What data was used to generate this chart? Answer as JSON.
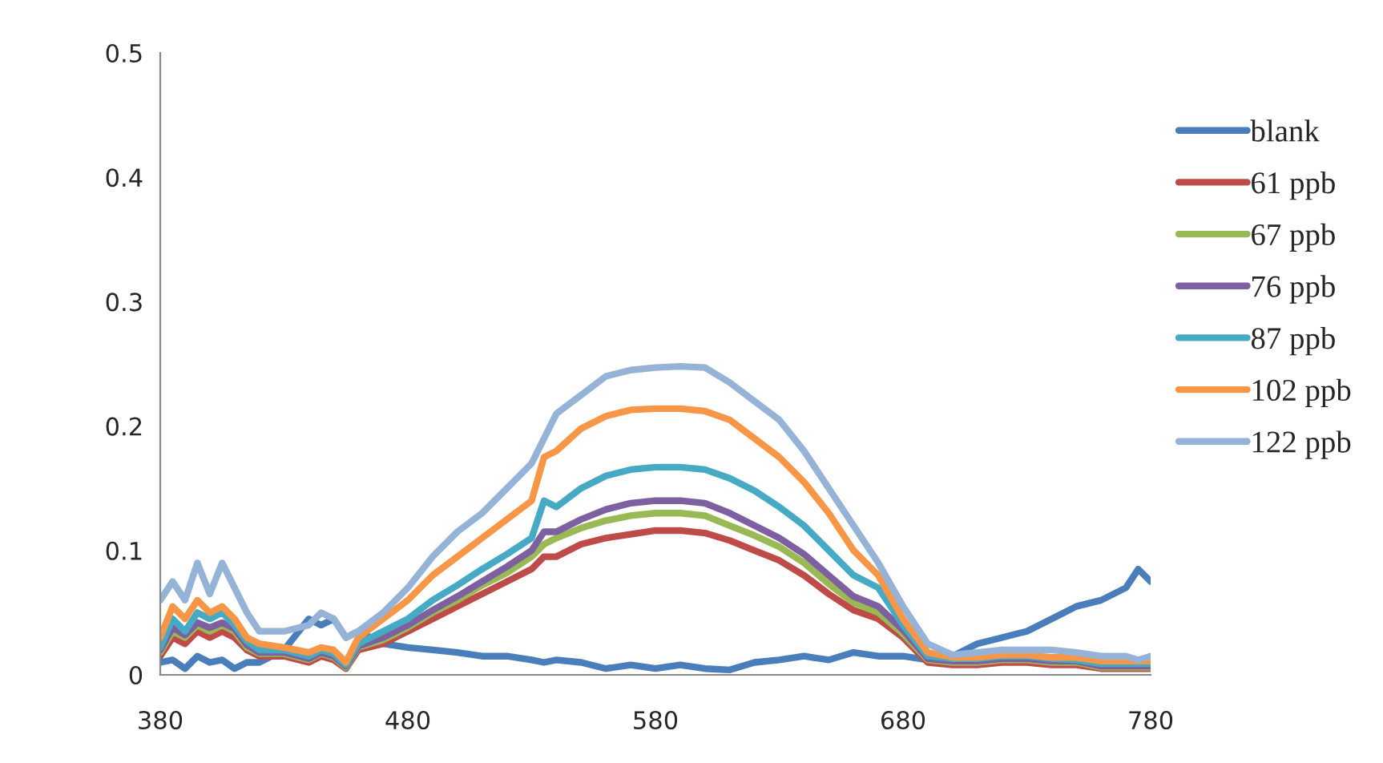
{
  "chart_data": {
    "type": "line",
    "xlim": [
      380,
      780
    ],
    "xticks": [
      380,
      480,
      580,
      680,
      780
    ],
    "ylim": [
      0,
      0.5
    ],
    "yticks": [
      0,
      0.1,
      0.2,
      0.3,
      0.4,
      0.5
    ],
    "grid": false,
    "legend": "right",
    "marker": "none",
    "line_style": "solid",
    "x": [
      380,
      385,
      390,
      395,
      400,
      405,
      410,
      415,
      420,
      430,
      440,
      445,
      450,
      455,
      460,
      470,
      480,
      490,
      500,
      510,
      520,
      530,
      535,
      540,
      550,
      560,
      570,
      580,
      590,
      600,
      610,
      620,
      630,
      640,
      650,
      660,
      670,
      680,
      690,
      700,
      710,
      720,
      730,
      740,
      750,
      760,
      770,
      775,
      780
    ],
    "series": [
      {
        "name": "blank",
        "color": "#4a7ebb",
        "values": [
          0.01,
          0.012,
          0.005,
          0.015,
          0.01,
          0.012,
          0.005,
          0.01,
          0.01,
          0.02,
          0.045,
          0.04,
          0.045,
          0.03,
          0.035,
          0.025,
          0.022,
          0.02,
          0.018,
          0.015,
          0.015,
          0.012,
          0.01,
          0.012,
          0.01,
          0.005,
          0.008,
          0.005,
          0.008,
          0.005,
          0.004,
          0.01,
          0.012,
          0.015,
          0.012,
          0.018,
          0.015,
          0.015,
          0.012,
          0.015,
          0.025,
          0.03,
          0.035,
          0.045,
          0.055,
          0.06,
          0.07,
          0.085,
          0.075
        ]
      },
      {
        "name": "61 ppb",
        "color": "#be4b48",
        "values": [
          0.015,
          0.03,
          0.025,
          0.035,
          0.03,
          0.035,
          0.03,
          0.02,
          0.015,
          0.015,
          0.01,
          0.015,
          0.012,
          0.005,
          0.02,
          0.025,
          0.035,
          0.045,
          0.055,
          0.065,
          0.075,
          0.085,
          0.095,
          0.095,
          0.105,
          0.11,
          0.113,
          0.116,
          0.116,
          0.114,
          0.108,
          0.1,
          0.092,
          0.08,
          0.065,
          0.052,
          0.045,
          0.03,
          0.01,
          0.008,
          0.008,
          0.01,
          0.01,
          0.008,
          0.008,
          0.005,
          0.005,
          0.005,
          0.005
        ]
      },
      {
        "name": "67 ppb",
        "color": "#98b954",
        "values": [
          0.018,
          0.035,
          0.03,
          0.04,
          0.035,
          0.04,
          0.035,
          0.022,
          0.017,
          0.017,
          0.012,
          0.017,
          0.014,
          0.006,
          0.022,
          0.028,
          0.038,
          0.05,
          0.06,
          0.072,
          0.082,
          0.095,
          0.105,
          0.11,
          0.118,
          0.124,
          0.128,
          0.13,
          0.13,
          0.128,
          0.12,
          0.112,
          0.103,
          0.09,
          0.073,
          0.058,
          0.05,
          0.033,
          0.012,
          0.01,
          0.01,
          0.012,
          0.012,
          0.01,
          0.01,
          0.006,
          0.006,
          0.006,
          0.006
        ]
      },
      {
        "name": "76 ppb",
        "color": "#7d60a0",
        "values": [
          0.02,
          0.038,
          0.032,
          0.042,
          0.038,
          0.042,
          0.037,
          0.024,
          0.018,
          0.018,
          0.013,
          0.018,
          0.015,
          0.007,
          0.023,
          0.03,
          0.04,
          0.052,
          0.063,
          0.075,
          0.087,
          0.1,
          0.115,
          0.115,
          0.125,
          0.133,
          0.138,
          0.14,
          0.14,
          0.138,
          0.13,
          0.12,
          0.11,
          0.097,
          0.08,
          0.063,
          0.055,
          0.036,
          0.013,
          0.011,
          0.011,
          0.013,
          0.013,
          0.011,
          0.011,
          0.007,
          0.007,
          0.007,
          0.007
        ]
      },
      {
        "name": "87 ppb",
        "color": "#46aac5",
        "values": [
          0.022,
          0.045,
          0.035,
          0.05,
          0.045,
          0.05,
          0.04,
          0.027,
          0.02,
          0.02,
          0.015,
          0.02,
          0.017,
          0.008,
          0.025,
          0.035,
          0.045,
          0.06,
          0.072,
          0.085,
          0.097,
          0.11,
          0.14,
          0.135,
          0.15,
          0.16,
          0.165,
          0.167,
          0.167,
          0.165,
          0.158,
          0.148,
          0.135,
          0.12,
          0.1,
          0.08,
          0.07,
          0.04,
          0.015,
          0.013,
          0.013,
          0.015,
          0.015,
          0.013,
          0.012,
          0.009,
          0.009,
          0.009,
          0.009
        ]
      },
      {
        "name": "102 ppb",
        "color": "#f79646",
        "values": [
          0.03,
          0.055,
          0.045,
          0.06,
          0.05,
          0.055,
          0.045,
          0.03,
          0.025,
          0.022,
          0.018,
          0.022,
          0.02,
          0.01,
          0.03,
          0.045,
          0.06,
          0.08,
          0.095,
          0.11,
          0.125,
          0.14,
          0.175,
          0.18,
          0.198,
          0.208,
          0.213,
          0.214,
          0.214,
          0.212,
          0.205,
          0.19,
          0.175,
          0.155,
          0.13,
          0.1,
          0.08,
          0.045,
          0.018,
          0.014,
          0.014,
          0.016,
          0.016,
          0.014,
          0.014,
          0.011,
          0.011,
          0.011,
          0.011
        ]
      },
      {
        "name": "122 ppb",
        "color": "#95b3d7",
        "values": [
          0.06,
          0.075,
          0.06,
          0.09,
          0.065,
          0.09,
          0.07,
          0.05,
          0.035,
          0.035,
          0.04,
          0.05,
          0.045,
          0.03,
          0.035,
          0.05,
          0.07,
          0.095,
          0.115,
          0.13,
          0.15,
          0.17,
          0.19,
          0.21,
          0.225,
          0.24,
          0.245,
          0.247,
          0.248,
          0.247,
          0.235,
          0.22,
          0.205,
          0.18,
          0.15,
          0.12,
          0.09,
          0.055,
          0.025,
          0.016,
          0.018,
          0.02,
          0.02,
          0.02,
          0.018,
          0.015,
          0.015,
          0.012,
          0.015
        ]
      }
    ]
  }
}
